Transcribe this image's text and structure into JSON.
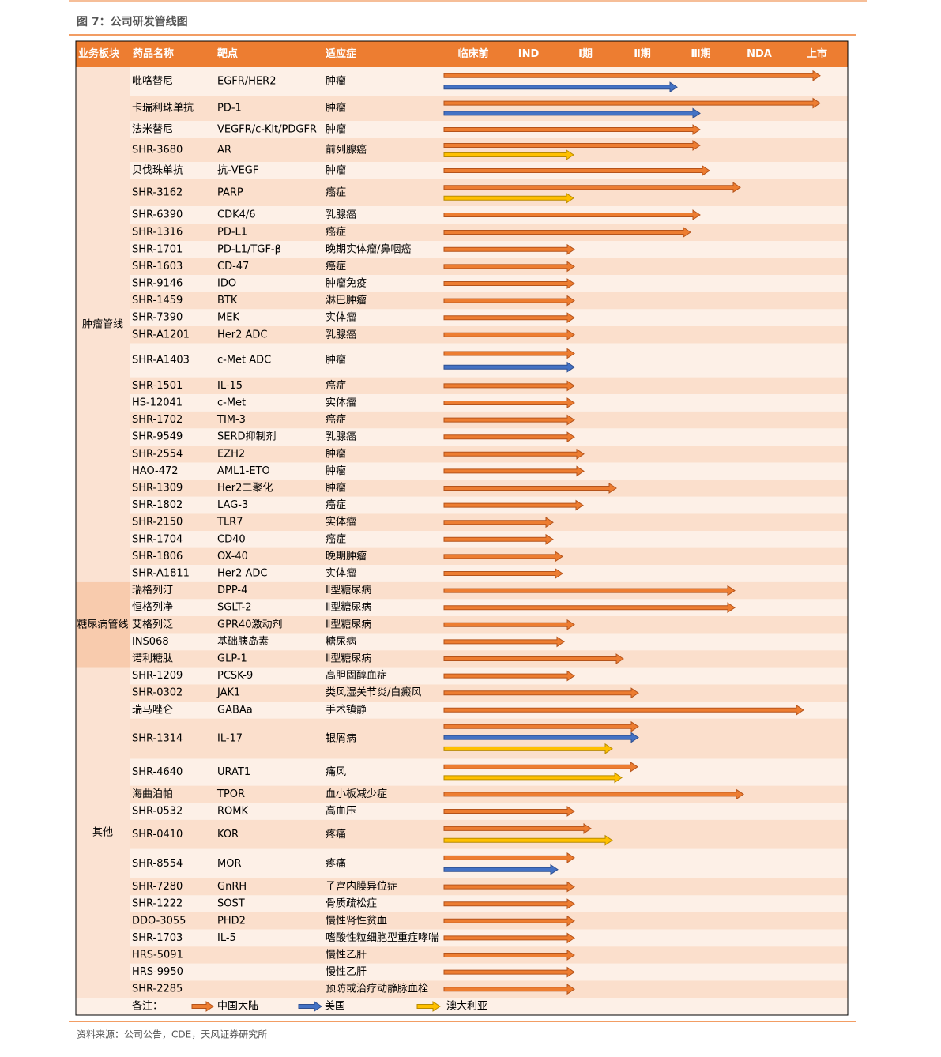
{
  "header": {
    "title": "图 7：公司研发管线图"
  },
  "table": {
    "columns": [
      "业务板块",
      "药品名称",
      "靶点",
      "适应症",
      "临床前",
      "IND",
      "Ⅰ期",
      "Ⅱ期",
      "Ⅲ期",
      "NDA",
      "上市"
    ],
    "segments": [
      {
        "label": "肿瘤管线",
        "rows": [
          {
            "drug": "吡咯替尼",
            "target": "EGFR/HER2",
            "indication": "肿瘤"
          },
          {
            "drug": "卡瑞利珠单抗",
            "target": "PD-1",
            "indication": "肿瘤"
          },
          {
            "drug": "法米替尼",
            "target": "VEGFR/c-Kit/PDGFR",
            "indication": "肿瘤"
          },
          {
            "drug": "SHR-3680",
            "target": "AR",
            "indication": "前列腺癌"
          },
          {
            "drug": "贝伐珠单抗",
            "target": "抗-VEGF",
            "indication": "肿瘤"
          },
          {
            "drug": "SHR-3162",
            "target": "PARP",
            "indication": "癌症"
          },
          {
            "drug": "SHR-6390",
            "target": "CDK4/6",
            "indication": "乳腺癌"
          },
          {
            "drug": "SHR-1316",
            "target": "PD-L1",
            "indication": "癌症"
          },
          {
            "drug": "SHR-1701",
            "target": "PD-L1/TGF-β",
            "indication": "晚期实体瘤/鼻咽癌"
          },
          {
            "drug": "SHR-1603",
            "target": "CD-47",
            "indication": "癌症"
          },
          {
            "drug": "SHR-9146",
            "target": "IDO",
            "indication": "肿瘤免疫"
          },
          {
            "drug": "SHR-1459",
            "target": "BTK",
            "indication": "淋巴肿瘤"
          },
          {
            "drug": "SHR-7390",
            "target": "MEK",
            "indication": "实体瘤"
          },
          {
            "drug": "SHR-A1201",
            "target": "Her2 ADC",
            "indication": "乳腺癌"
          },
          {
            "drug": "SHR-A1403",
            "target": "c-Met ADC",
            "indication": "肿瘤"
          },
          {
            "drug": "SHR-1501",
            "target": "IL-15",
            "indication": "癌症"
          },
          {
            "drug": "HS-12041",
            "target": "c-Met",
            "indication": "实体瘤"
          },
          {
            "drug": "SHR-1702",
            "target": "TIM-3",
            "indication": "癌症"
          },
          {
            "drug": "SHR-9549",
            "target": "SERD抑制剂",
            "indication": "乳腺癌"
          },
          {
            "drug": "SHR-2554",
            "target": "EZH2",
            "indication": "肿瘤"
          },
          {
            "drug": "HAO-472",
            "target": "AML1-ETO",
            "indication": "肿瘤"
          },
          {
            "drug": "SHR-1309",
            "target": "Her2二聚化",
            "indication": "肿瘤"
          },
          {
            "drug": "SHR-1802",
            "target": "LAG-3",
            "indication": "癌症"
          },
          {
            "drug": "SHR-2150",
            "target": "TLR7",
            "indication": "实体瘤"
          },
          {
            "drug": "SHR-1704",
            "target": "CD40",
            "indication": "癌症"
          },
          {
            "drug": "SHR-1806",
            "target": "OX-40",
            "indication": "晚期肿瘤"
          },
          {
            "drug": "SHR-A1811",
            "target": "Her2 ADC",
            "indication": "实体瘤"
          }
        ]
      },
      {
        "label": "糖尿病管线",
        "rows": [
          {
            "drug": "瑞格列汀",
            "target": "DPP-4",
            "indication": "Ⅱ型糖尿病"
          },
          {
            "drug": "恒格列净",
            "target": "SGLT-2",
            "indication": "Ⅱ型糖尿病"
          },
          {
            "drug": "艾格列泛",
            "target": "GPR40激动剂",
            "indication": "Ⅱ型糖尿病"
          },
          {
            "drug": "INS068",
            "target": "基础胰岛素",
            "indication": "糖尿病"
          },
          {
            "drug": "诺利糖肽",
            "target": "GLP-1",
            "indication": "Ⅱ型糖尿病"
          }
        ]
      },
      {
        "label": "其他",
        "rows": [
          {
            "drug": "SHR-1209",
            "target": "PCSK-9",
            "indication": "高胆固醇血症"
          },
          {
            "drug": "SHR-0302",
            "target": "JAK1",
            "indication": "类风湿关节炎/白癜风"
          },
          {
            "drug": "瑞马唑仑",
            "target": "GABAa",
            "indication": "手术镇静"
          },
          {
            "drug": "SHR-1314",
            "target": "IL-17",
            "indication": "银屑病"
          },
          {
            "drug": "SHR-4640",
            "target": "URAT1",
            "indication": "痛风"
          },
          {
            "drug": "海曲泊帕",
            "target": "TPOR",
            "indication": "血小板减少症"
          },
          {
            "drug": "SHR-0532",
            "target": "ROMK",
            "indication": "高血压"
          },
          {
            "drug": "SHR-0410",
            "target": "KOR",
            "indication": "疼痛"
          },
          {
            "drug": "SHR-8554",
            "target": "MOR",
            "indication": "疼痛"
          },
          {
            "drug": "SHR-7280",
            "target": "GnRH",
            "indication": "子宫内膜异位症"
          },
          {
            "drug": "SHR-1222",
            "target": "SOST",
            "indication": "骨质疏松症"
          },
          {
            "drug": "DDO-3055",
            "target": "PHD2",
            "indication": "慢性肾性贫血"
          },
          {
            "drug": "SHR-1703",
            "target": "IL-5",
            "indication": "嗜酸性粒细胞型重症哮喘"
          },
          {
            "drug": "HRS-5091",
            "indication": "慢性乙肝"
          },
          {
            "drug": "HRS-9950",
            "indication": "慢性乙肝"
          },
          {
            "drug": "SHR-2285",
            "indication": "预防或治疗动静脉血栓"
          }
        ]
      }
    ],
    "legend": {
      "label": "备注：",
      "items": [
        "中国大陆",
        "美国",
        "澳大利亚"
      ]
    }
  },
  "source": "资料来源：公司公告，CDE，天风证券研究所"
}
